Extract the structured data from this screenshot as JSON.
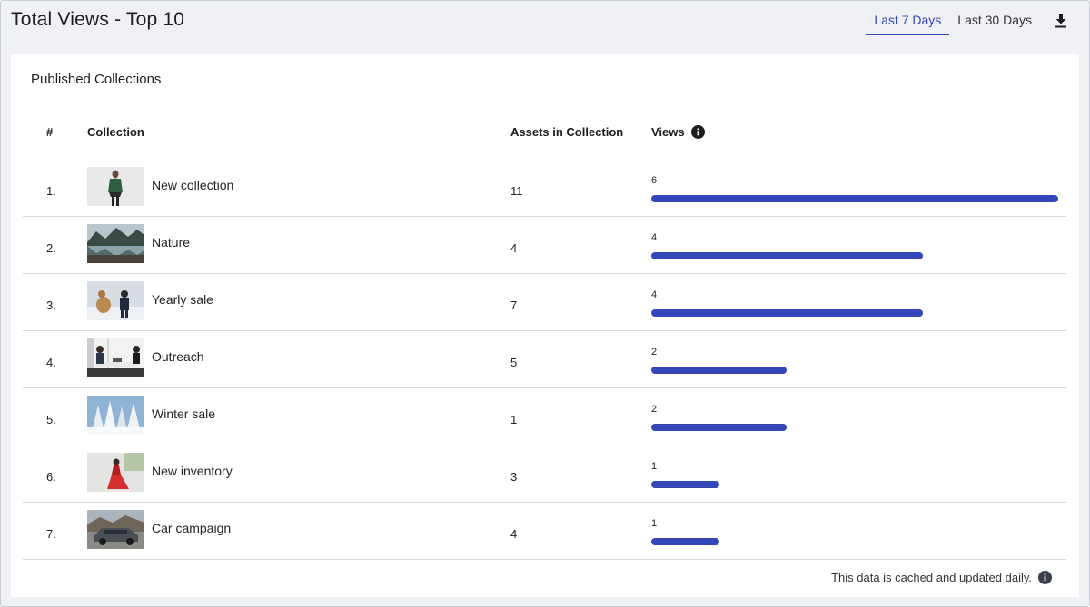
{
  "header": {
    "title": "Total Views - Top 10",
    "tabs": [
      {
        "label": "Last 7 Days",
        "active": true
      },
      {
        "label": "Last 30 Days",
        "active": false
      }
    ],
    "download_icon": "download-icon"
  },
  "card": {
    "title": "Published Collections",
    "columns": {
      "rank": "#",
      "collection": "Collection",
      "assets": "Assets in Collection",
      "views": "Views",
      "views_info_icon": "info-icon"
    },
    "max_views": 6,
    "rows": [
      {
        "rank": "1.",
        "name": "New collection",
        "assets": "11",
        "views": 6,
        "thumb": "woman-green-jacket"
      },
      {
        "rank": "2.",
        "name": "Nature",
        "assets": "4",
        "views": 4,
        "thumb": "mountain-lake"
      },
      {
        "rank": "3.",
        "name": "Yearly sale",
        "assets": "7",
        "views": 4,
        "thumb": "child-with-dog-snow"
      },
      {
        "rank": "4.",
        "name": "Outreach",
        "assets": "5",
        "views": 2,
        "thumb": "office-meeting"
      },
      {
        "rank": "5.",
        "name": "Winter sale",
        "assets": "1",
        "views": 2,
        "thumb": "snowy-trees"
      },
      {
        "rank": "6.",
        "name": "New inventory",
        "assets": "3",
        "views": 1,
        "thumb": "woman-red-dress"
      },
      {
        "rank": "7.",
        "name": "Car campaign",
        "assets": "4",
        "views": 1,
        "thumb": "car-mountains"
      }
    ],
    "footer_note": "This data is cached and updated daily."
  },
  "colors": {
    "accent": "#3347b8",
    "background": "#eff1f5",
    "card": "#ffffff"
  }
}
